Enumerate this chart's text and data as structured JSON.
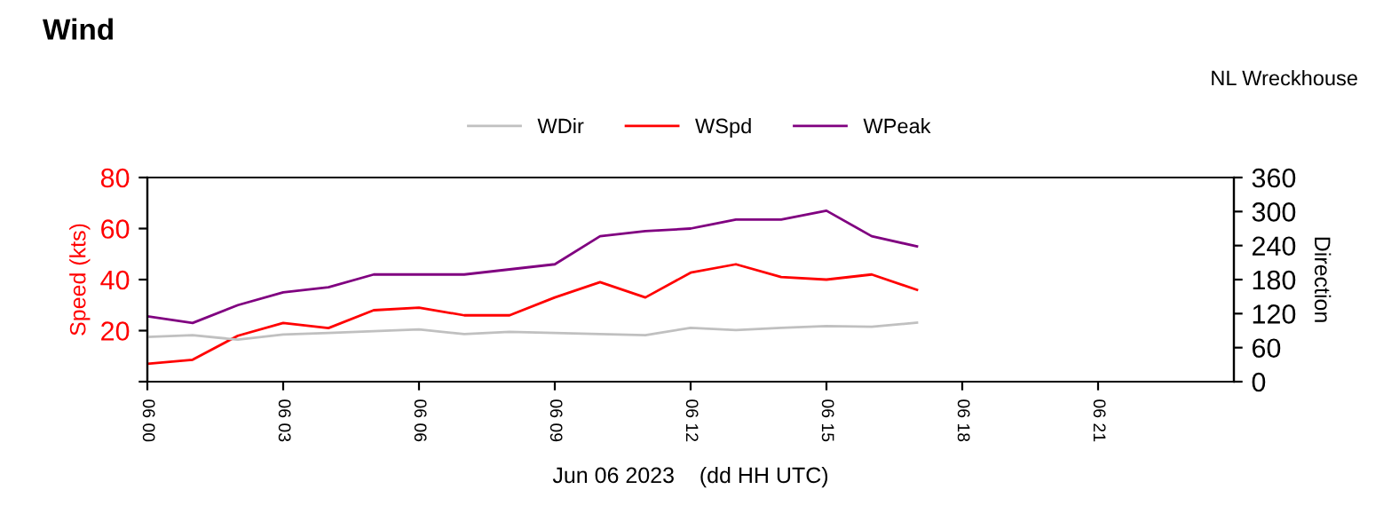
{
  "chart_data": {
    "type": "line",
    "title": "Wind",
    "xlabel": "Jun 06 2023    (dd HH UTC)",
    "ylabel": "Speed (kts)",
    "y2label": "Direction",
    "annotations": [
      "NL Wreckhouse"
    ],
    "x": [
      "2023-06-06T00:00",
      "2023-06-06T01:00",
      "2023-06-06T02:00",
      "2023-06-06T03:00",
      "2023-06-06T04:00",
      "2023-06-06T05:00",
      "2023-06-06T06:00",
      "2023-06-06T07:00",
      "2023-06-06T08:00",
      "2023-06-06T09:00",
      "2023-06-06T10:00",
      "2023-06-06T11:00",
      "2023-06-06T12:00",
      "2023-06-06T13:00",
      "2023-06-06T14:00",
      "2023-06-06T15:00",
      "2023-06-06T16:00",
      "2023-06-06T17:00"
    ],
    "series": [
      {
        "name": "WDir",
        "color": "#c0c0c0",
        "axis": "y2",
        "values": [
          79,
          82,
          74,
          83,
          86,
          89,
          92,
          84,
          88,
          86,
          84,
          82,
          95,
          91,
          95,
          98,
          97,
          104
        ]
      },
      {
        "name": "WSpd",
        "color": "#ff0000",
        "values": [
          7,
          8.6,
          18,
          23,
          21,
          28,
          29,
          26,
          26,
          33,
          39,
          33,
          42.7,
          46,
          41,
          40,
          42,
          36
        ]
      },
      {
        "name": "WPeak",
        "color": "#800080",
        "values": [
          25.6,
          23,
          30,
          35,
          37,
          42,
          42,
          42,
          44,
          46,
          57,
          59,
          60,
          63.5,
          63.5,
          67,
          57,
          53
        ]
      }
    ],
    "xlim": [
      "2023-06-06T00:00",
      "2023-06-07T00:00"
    ],
    "xticks": [
      {
        "value": "2023-06-06T00:00",
        "label": "06 00"
      },
      {
        "value": "2023-06-06T03:00",
        "label": "06 03"
      },
      {
        "value": "2023-06-06T06:00",
        "label": "06 06"
      },
      {
        "value": "2023-06-06T09:00",
        "label": "06 09"
      },
      {
        "value": "2023-06-06T12:00",
        "label": "06 12"
      },
      {
        "value": "2023-06-06T15:00",
        "label": "06 15"
      },
      {
        "value": "2023-06-06T18:00",
        "label": "06 18"
      },
      {
        "value": "2023-06-06T21:00",
        "label": "06 21"
      }
    ],
    "ylim": [
      0,
      80
    ],
    "yticks": [
      {
        "value": 0,
        "label": null
      },
      20,
      40,
      60,
      80
    ],
    "y2lim": [
      0,
      360
    ],
    "y2ticks": [
      0,
      60,
      120,
      180,
      240,
      300,
      360
    ],
    "legend": "top",
    "grid": false,
    "marker": "none",
    "line_style": "solid"
  }
}
